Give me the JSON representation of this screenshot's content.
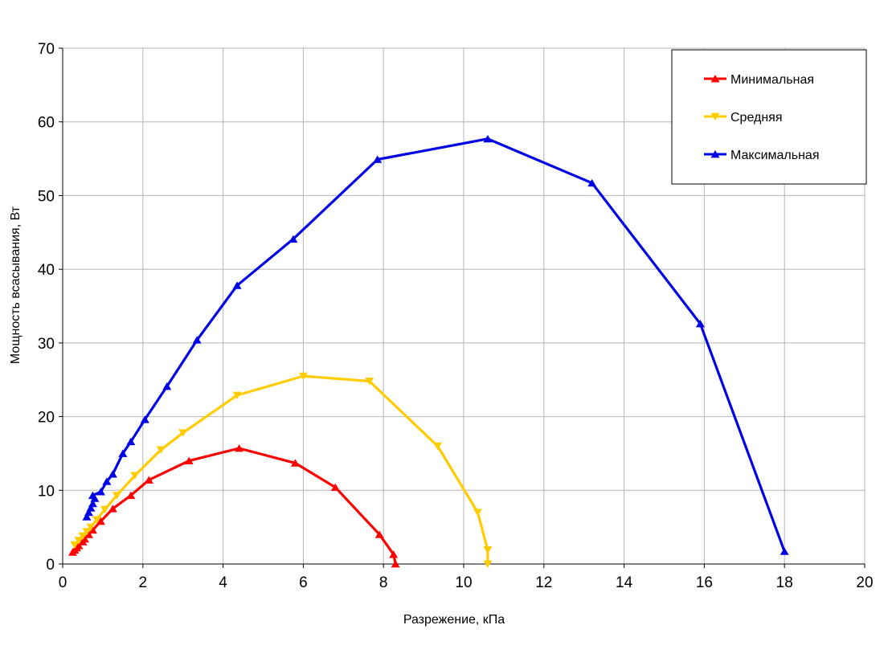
{
  "chart_data": {
    "type": "line",
    "title": "",
    "xlabel": "Разрежение, кПа",
    "ylabel": "Мощность всасывания, Вт",
    "xlim": [
      0,
      20
    ],
    "ylim": [
      0,
      70
    ],
    "xticks": [
      0,
      2,
      4,
      6,
      8,
      10,
      12,
      14,
      16,
      18,
      20
    ],
    "yticks": [
      0,
      10,
      20,
      30,
      40,
      50,
      60,
      70
    ],
    "grid": true,
    "legend_position": "top-right",
    "series": [
      {
        "name": "Минимальная",
        "color": "#ff0000",
        "marker": "triangle-up",
        "points": [
          [
            0.25,
            1.6
          ],
          [
            0.3,
            1.9
          ],
          [
            0.35,
            2.2
          ],
          [
            0.4,
            2.5
          ],
          [
            0.5,
            3.0
          ],
          [
            0.55,
            3.4
          ],
          [
            0.65,
            4.0
          ],
          [
            0.75,
            4.6
          ],
          [
            0.95,
            5.8
          ],
          [
            1.25,
            7.5
          ],
          [
            1.7,
            9.3
          ],
          [
            2.15,
            11.4
          ],
          [
            3.15,
            14.0
          ],
          [
            4.4,
            15.7
          ],
          [
            5.8,
            13.7
          ],
          [
            6.8,
            10.4
          ],
          [
            7.9,
            4.0
          ],
          [
            8.25,
            1.3
          ],
          [
            8.3,
            0.0
          ]
        ]
      },
      {
        "name": "Средняя",
        "color": "#ffcc00",
        "marker": "triangle-down",
        "points": [
          [
            0.3,
            2.6
          ],
          [
            0.4,
            3.2
          ],
          [
            0.5,
            3.8
          ],
          [
            0.6,
            4.4
          ],
          [
            0.7,
            5.0
          ],
          [
            0.85,
            6.0
          ],
          [
            1.05,
            7.4
          ],
          [
            1.35,
            9.3
          ],
          [
            1.8,
            12.0
          ],
          [
            2.45,
            15.5
          ],
          [
            3.0,
            17.8
          ],
          [
            4.35,
            22.9
          ],
          [
            6.0,
            25.5
          ],
          [
            7.65,
            24.8
          ],
          [
            9.35,
            16.0
          ],
          [
            10.35,
            7.0
          ],
          [
            10.6,
            1.9
          ],
          [
            10.6,
            0.0
          ]
        ]
      },
      {
        "name": "Максимальная",
        "color": "#0000e6",
        "marker": "triangle-up",
        "points": [
          [
            0.6,
            6.4
          ],
          [
            0.65,
            7.0
          ],
          [
            0.7,
            7.6
          ],
          [
            0.75,
            8.2
          ],
          [
            0.8,
            8.9
          ],
          [
            0.75,
            9.3
          ],
          [
            0.95,
            9.8
          ],
          [
            1.1,
            11.2
          ],
          [
            1.25,
            12.2
          ],
          [
            1.5,
            15.0
          ],
          [
            1.7,
            16.6
          ],
          [
            2.05,
            19.6
          ],
          [
            2.6,
            24.1
          ],
          [
            3.35,
            30.4
          ],
          [
            4.35,
            37.8
          ],
          [
            5.75,
            44.1
          ],
          [
            7.85,
            54.9
          ],
          [
            10.6,
            57.7
          ],
          [
            13.2,
            51.7
          ],
          [
            15.9,
            32.6
          ],
          [
            18.0,
            1.7
          ]
        ]
      }
    ]
  }
}
